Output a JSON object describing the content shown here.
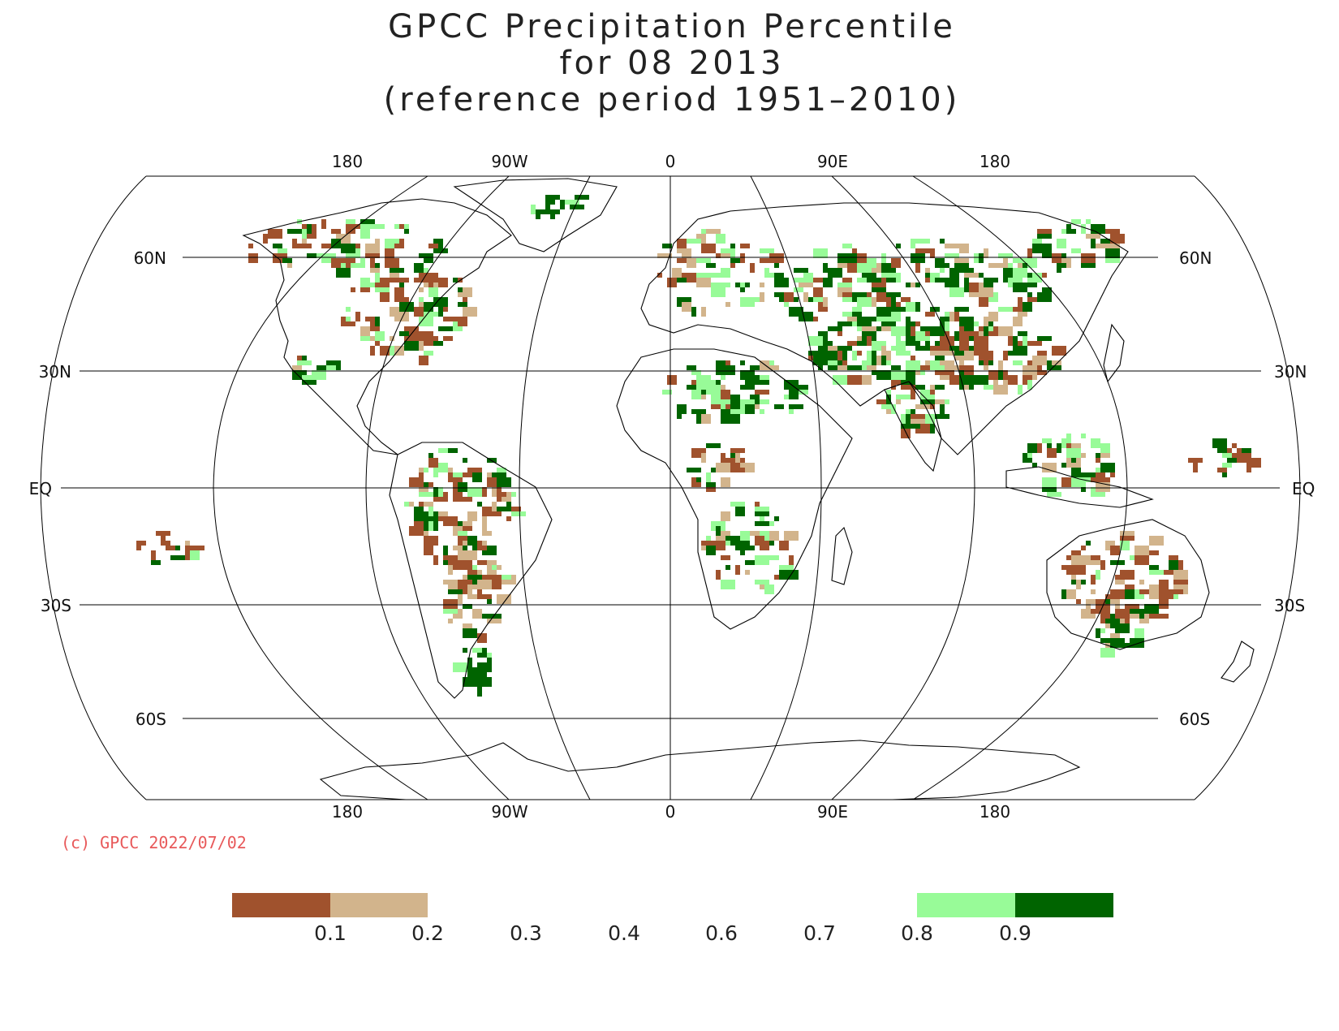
{
  "title": {
    "line1": "GPCC Precipitation Percentile",
    "line2": "for 08 2013",
    "line3": "(reference period 1951–2010)"
  },
  "map": {
    "projection": "Robinson",
    "lon_labels_top": [
      "180",
      "90W",
      "0",
      "90E",
      "180"
    ],
    "lon_labels_bottom": [
      "180",
      "90W",
      "0",
      "90E",
      "180"
    ],
    "lat_labels_left": [
      "60N",
      "30N",
      "EQ",
      "30S",
      "60S"
    ],
    "lat_labels_right": [
      "60N",
      "30N",
      "EQ",
      "30S",
      "60S"
    ]
  },
  "copyright": {
    "text": "(c) GPCC 2022/07/02",
    "color": "#e8595a"
  },
  "colorbar": {
    "ticks": [
      "0.1",
      "0.2",
      "0.3",
      "0.4",
      "0.6",
      "0.7",
      "0.8",
      "0.9"
    ],
    "bins": [
      {
        "range": "<0.1",
        "color": "#a0522d"
      },
      {
        "range": "0.1-0.2",
        "color": "#d2b48c"
      },
      {
        "range": "0.2-0.8",
        "color": "#ffffff"
      },
      {
        "range": "0.8-0.9",
        "color": "#98fb98"
      },
      {
        "range": ">0.9",
        "color": "#006400"
      }
    ]
  },
  "legend_colors": {
    "very_dry": "#a0522d",
    "dry": "#d2b48c",
    "wet": "#98fb98",
    "very_wet": "#006400"
  }
}
